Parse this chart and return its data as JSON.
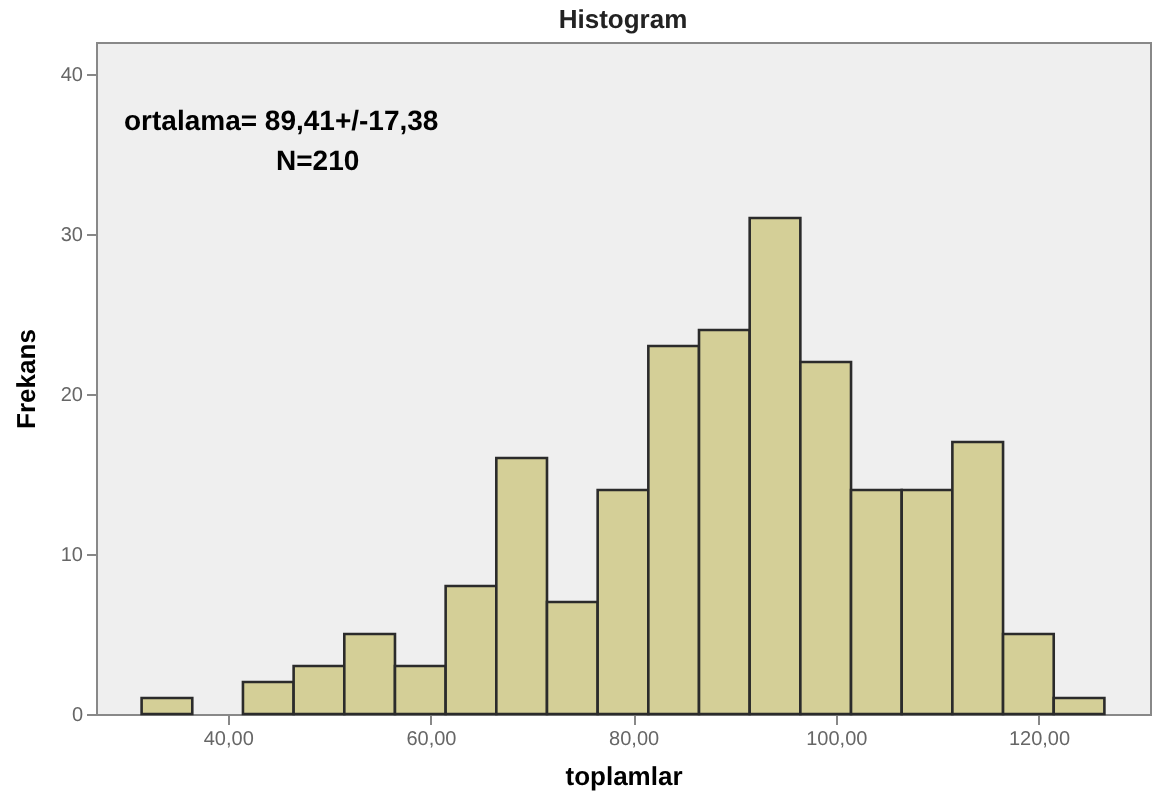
{
  "chart_data": {
    "type": "histogram",
    "title": "Histogram",
    "xlabel": "toplamlar",
    "ylabel": "Frekans",
    "bins": [
      31.5,
      36.5,
      41.5,
      46.5,
      51.5,
      56.5,
      61.5,
      66.5,
      71.5,
      76.5,
      81.5,
      86.5,
      91.5,
      96.5,
      101.5,
      106.5,
      111.5,
      116.5,
      121.5,
      126.5
    ],
    "values": [
      1,
      0,
      2,
      3,
      5,
      3,
      8,
      16,
      7,
      14,
      23,
      24,
      31,
      22,
      14,
      14,
      17,
      5,
      1
    ],
    "color": "#d4cf97",
    "xlim": [
      27,
      131
    ],
    "xticks": [
      {
        "value": 40,
        "label": "40,00"
      },
      {
        "value": 60,
        "label": "60,00"
      },
      {
        "value": 80,
        "label": "80,00"
      },
      {
        "value": 100,
        "label": "100,00"
      },
      {
        "value": 120,
        "label": "120,00"
      }
    ],
    "ylim": [
      0,
      42
    ],
    "yticks": [
      0,
      10,
      20,
      30,
      40
    ],
    "grid": false,
    "annotations": [
      "ortalama= 89,41+/-17,38",
      "N=210"
    ]
  }
}
